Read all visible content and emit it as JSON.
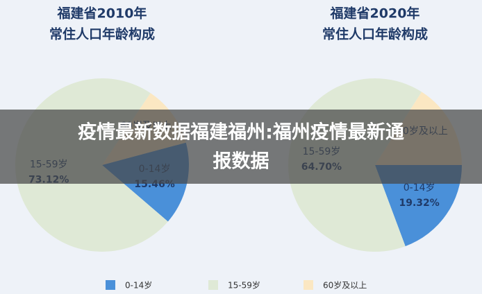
{
  "chart_data": [
    {
      "type": "pie",
      "title": "福建省2010年",
      "subtitle": "常住人口年龄构成",
      "categories": [
        "0-14岁",
        "15-59岁",
        "60岁及以上"
      ],
      "values": [
        15.46,
        73.12,
        11.42
      ],
      "value_labels": [
        "15.46%",
        "73.12%",
        null
      ],
      "colors": [
        "#4a90d9",
        "#dfe9d6",
        "#fbe7c2"
      ]
    },
    {
      "type": "pie",
      "title": "福建省2020年",
      "subtitle": "常住人口年龄构成",
      "categories": [
        "0-14岁",
        "15-59岁",
        "60岁及以上"
      ],
      "values": [
        19.32,
        64.7,
        15.98
      ],
      "value_labels": [
        "19.32%",
        "64.70%",
        null
      ],
      "colors": [
        "#4a90d9",
        "#dfe9d6",
        "#fbe7c2"
      ]
    }
  ],
  "banner": [
    "疫情最新数据福建福州:福州疫情最新通",
    "报数据"
  ]
}
